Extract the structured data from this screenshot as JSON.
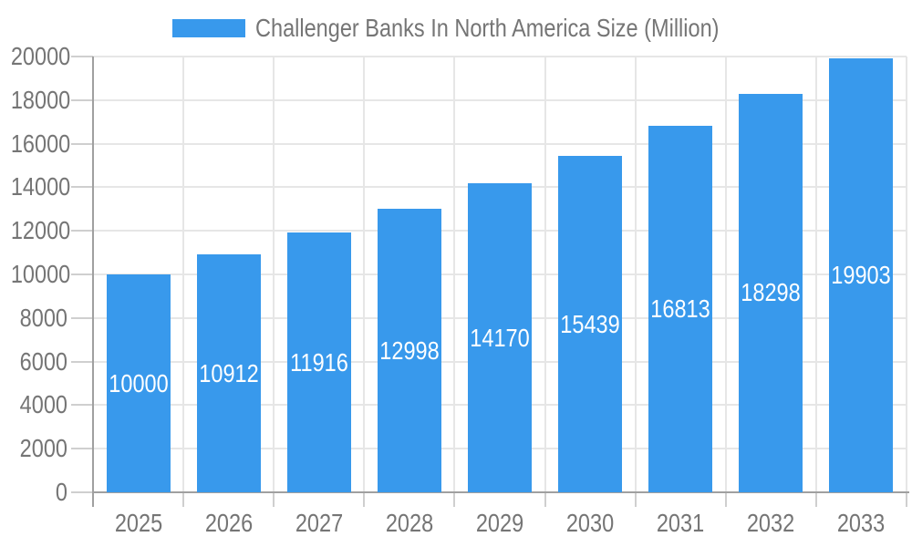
{
  "legend": {
    "label": "Challenger Banks In North America Size (Million)",
    "swatch_color": "#3899ec"
  },
  "chart_data": {
    "type": "bar",
    "title": "Challenger Banks In North America Size (Million)",
    "categories": [
      "2025",
      "2026",
      "2027",
      "2028",
      "2029",
      "2030",
      "2031",
      "2032",
      "2033"
    ],
    "values": [
      10000,
      10912,
      11916,
      12998,
      14170,
      15439,
      16813,
      18298,
      19903
    ],
    "xlabel": "",
    "ylabel": "",
    "ylim": [
      0,
      20000
    ],
    "y_ticks": [
      0,
      2000,
      4000,
      6000,
      8000,
      10000,
      12000,
      14000,
      16000,
      18000,
      20000
    ],
    "grid": true,
    "legend_position": "top",
    "value_label_position": "inside-center"
  },
  "colors": {
    "bar": "#3899ec",
    "axis_line": "#a0a0a0",
    "gridline": "#e6e6e6",
    "tick": "#cfcfcf",
    "label_text": "#757575",
    "value_text": "#ffffff",
    "background": "#ffffff"
  }
}
